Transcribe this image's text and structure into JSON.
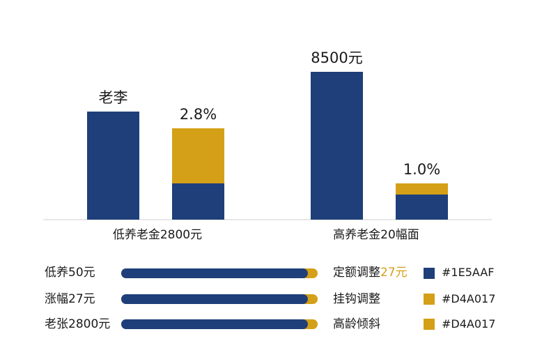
{
  "colors": {
    "blue": "#1E3F7A",
    "gold": "#D4A017",
    "axis": "#cfcfcf"
  },
  "chart_data": {
    "type": "bar",
    "groups": [
      {
        "category": "低养老金2800元",
        "bars": [
          {
            "label": "老李",
            "segments": [
              {
                "color": "blue",
                "value": 155
              }
            ]
          },
          {
            "label": "2.8%",
            "segments": [
              {
                "color": "blue",
                "value": 52
              },
              {
                "color": "gold",
                "value": 79
              }
            ]
          }
        ]
      },
      {
        "category": "高养老金20幅面",
        "bars": [
          {
            "label": "8500元",
            "segments": [
              {
                "color": "blue",
                "value": 212
              }
            ]
          },
          {
            "label": "1.0%",
            "segments": [
              {
                "color": "blue",
                "value": 36
              },
              {
                "color": "gold",
                "value": 16
              }
            ]
          }
        ]
      }
    ],
    "ylim": [
      0,
      230
    ]
  },
  "bars_panel": {
    "rows": [
      {
        "label": "低养50元",
        "blue_fraction": 0.95,
        "gold_fraction": 0.05
      },
      {
        "label": "涨幅27元",
        "blue_fraction": 0.95,
        "gold_fraction": 0.05
      },
      {
        "label": "老张2800元",
        "blue_fraction": 0.95,
        "gold_fraction": 0.05
      }
    ]
  },
  "adjustments": [
    {
      "text": "定额调整",
      "highlight": "27元"
    },
    {
      "text": "挂钩调整",
      "highlight": ""
    },
    {
      "text": "高龄倾斜",
      "highlight": ""
    }
  ],
  "legend": [
    {
      "color": "#1E3F7A",
      "hex_label": "#1E5AAF"
    },
    {
      "color": "#D4A017",
      "hex_label": "#D4A017"
    },
    {
      "color": "#D4A017",
      "hex_label": "#D4A017"
    }
  ]
}
